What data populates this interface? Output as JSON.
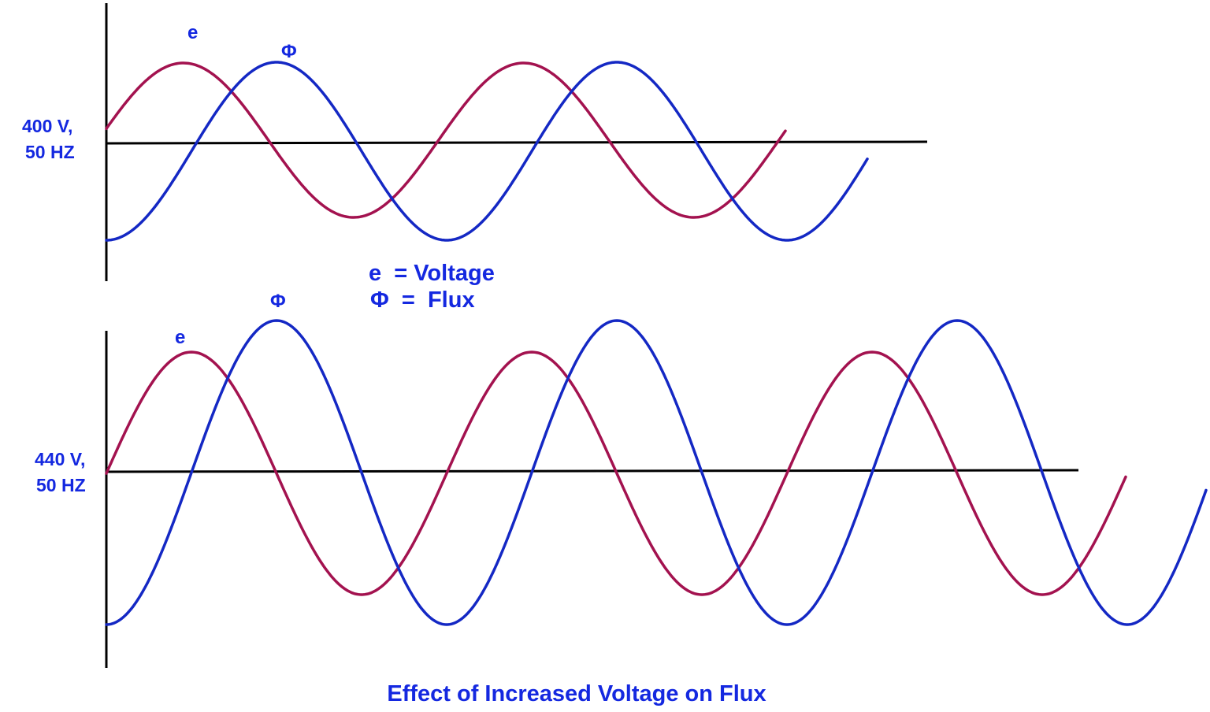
{
  "colors": {
    "voltage": "#a3124f",
    "flux": "#1428c4",
    "axis": "#000000",
    "text": "#1428e0"
  },
  "top_plot": {
    "supply_line1": "400 V,",
    "supply_line2": "50 HZ",
    "voltage_symbol": "e",
    "flux_symbol": "Φ"
  },
  "legend": {
    "voltage": "e  = Voltage",
    "flux": "Φ  =  Flux"
  },
  "bottom_plot": {
    "supply_line1": "440 V,",
    "supply_line2": "50 HZ",
    "voltage_symbol": "e",
    "flux_symbol": "Φ"
  },
  "caption": "Effect of Increased Voltage on Flux"
}
